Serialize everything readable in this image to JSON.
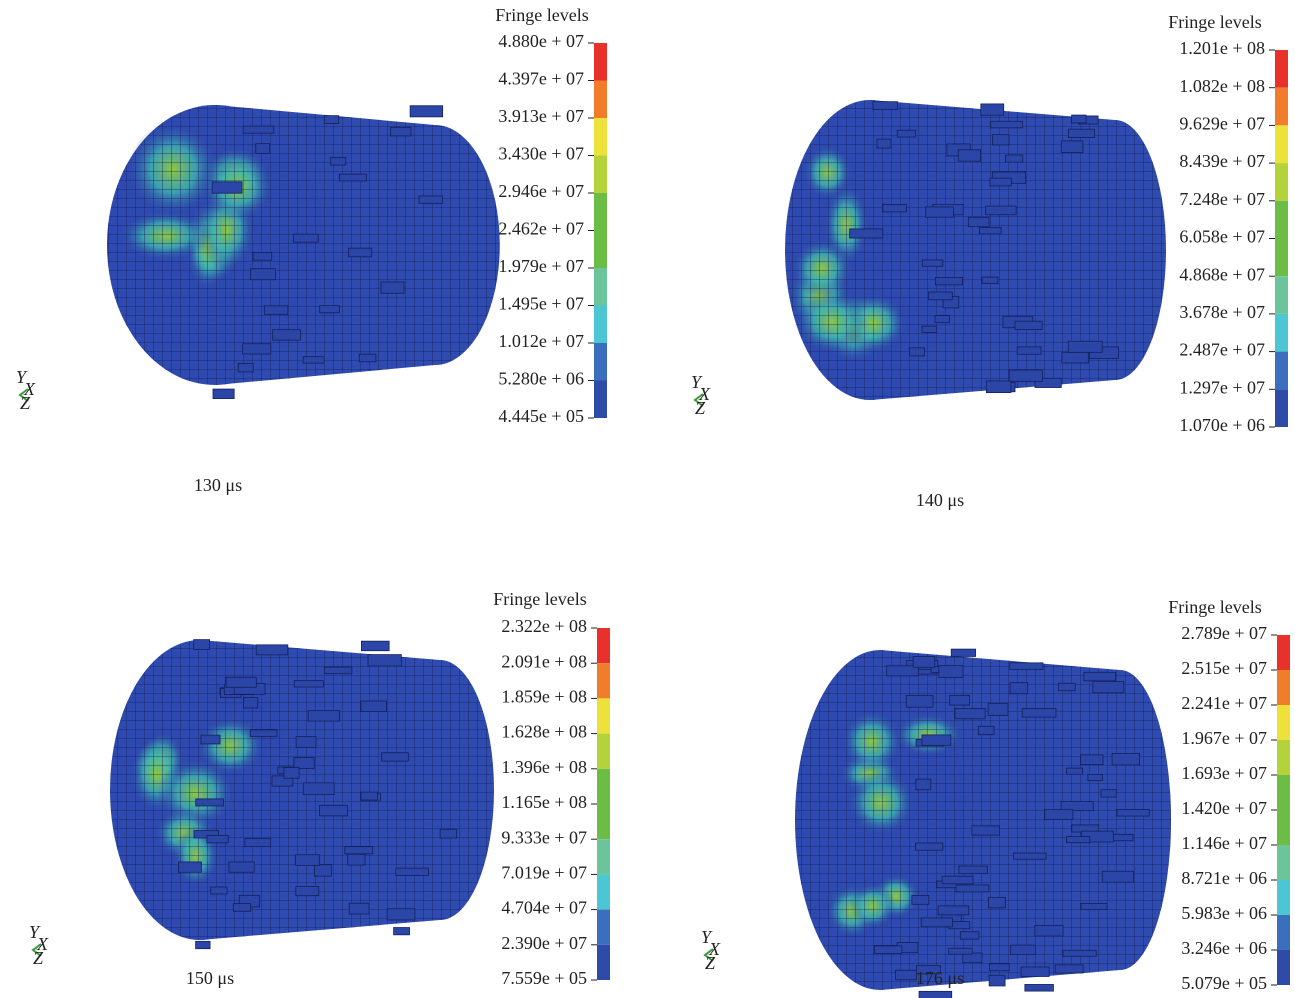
{
  "axis_triad": {
    "y": "Y",
    "x": "X",
    "z": "Z"
  },
  "panels": [
    {
      "legend_title": "Fringe levels",
      "levels": [
        "4.880e + 07",
        "4.397e + 07",
        "3.913e + 07",
        "3.430e + 07",
        "2.946e + 07",
        "2.462e + 07",
        "1.979e + 07",
        "1.495e + 07",
        "1.012e + 07",
        "5.280e + 06",
        "4.445e + 05"
      ],
      "caption": "130 μs"
    },
    {
      "legend_title": "Fringe levels",
      "levels": [
        "1.201e + 08",
        "1.082e + 08",
        "9.629e + 07",
        "8.439e + 07",
        "7.248e + 07",
        "6.058e + 07",
        "4.868e + 07",
        "3.678e + 07",
        "2.487e + 07",
        "1.297e + 07",
        "1.070e + 06"
      ],
      "caption": "140 μs"
    },
    {
      "legend_title": "Fringe levels",
      "levels": [
        "2.322e + 08",
        "2.091e + 08",
        "1.859e + 08",
        "1.628e + 08",
        "1.396e + 08",
        "1.165e + 08",
        "9.333e + 07",
        "7.019e + 07",
        "4.704e + 07",
        "2.390e + 07",
        "7.559e + 05"
      ],
      "caption": "150 μs"
    },
    {
      "legend_title": "Fringe levels",
      "levels": [
        "2.789e + 07",
        "2.515e + 07",
        "2.241e + 07",
        "1.967e + 07",
        "1.693e + 07",
        "1.420e + 07",
        "1.146e + 07",
        "8.721e + 06",
        "5.983e + 06",
        "3.246e + 06",
        "5.079e + 05"
      ],
      "caption": "176 μs"
    }
  ]
}
